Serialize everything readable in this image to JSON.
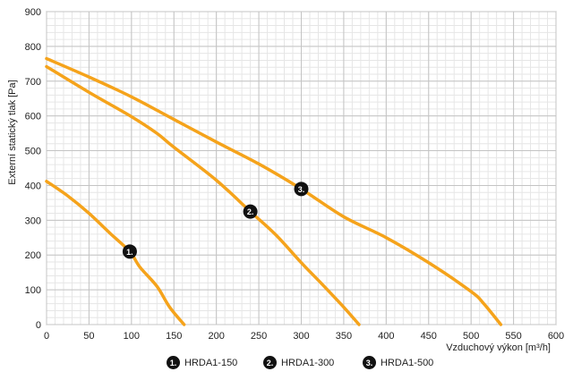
{
  "chart_data": {
    "type": "line",
    "title": "",
    "xlabel": "Vzduchový výkon [m³/h]",
    "ylabel": "Externí statický tlak [Pa]",
    "xlim": [
      0,
      600
    ],
    "ylim": [
      0,
      900
    ],
    "x_ticks": [
      "0",
      "50",
      "100",
      "150",
      "200",
      "250",
      "300",
      "350",
      "400",
      "450",
      "500",
      "550",
      "600"
    ],
    "y_ticks": [
      "0",
      "100",
      "200",
      "300",
      "400",
      "500",
      "600",
      "700",
      "800",
      "900"
    ],
    "grid": true,
    "legend_position": "bottom",
    "series_color": "#F5A31B",
    "series": [
      {
        "name": "HRDA1-150",
        "badge": "1.",
        "marker_at": [
          98,
          210
        ],
        "points": [
          [
            0,
            412
          ],
          [
            25,
            370
          ],
          [
            50,
            320
          ],
          [
            75,
            262
          ],
          [
            98,
            210
          ],
          [
            110,
            165
          ],
          [
            130,
            110
          ],
          [
            145,
            50
          ],
          [
            162,
            0
          ]
        ]
      },
      {
        "name": "HRDA1-300",
        "badge": "2.",
        "marker_at": [
          240,
          325
        ],
        "points": [
          [
            0,
            742
          ],
          [
            50,
            668
          ],
          [
            100,
            598
          ],
          [
            130,
            550
          ],
          [
            150,
            510
          ],
          [
            200,
            415
          ],
          [
            240,
            325
          ],
          [
            270,
            258
          ],
          [
            300,
            178
          ],
          [
            325,
            115
          ],
          [
            350,
            50
          ],
          [
            368,
            0
          ]
        ]
      },
      {
        "name": "HRDA1-500",
        "badge": "3.",
        "marker_at": [
          300,
          390
        ],
        "points": [
          [
            0,
            765
          ],
          [
            50,
            712
          ],
          [
            100,
            655
          ],
          [
            150,
            590
          ],
          [
            200,
            525
          ],
          [
            250,
            462
          ],
          [
            300,
            390
          ],
          [
            350,
            310
          ],
          [
            400,
            250
          ],
          [
            450,
            178
          ],
          [
            500,
            95
          ],
          [
            515,
            60
          ],
          [
            535,
            0
          ]
        ]
      }
    ]
  }
}
